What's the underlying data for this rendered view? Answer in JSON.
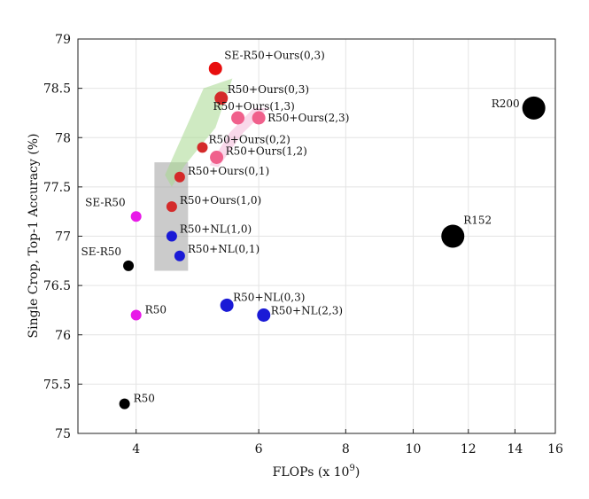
{
  "chart_data": {
    "type": "scatter",
    "title": "",
    "xlabel": "FLOPs (x 10",
    "xlabel_sup": "9",
    "xlabel_end": ")",
    "ylabel": "Single Crop, Top-1 Accuracy (%)",
    "xscale": "log",
    "xlim": [
      3.3,
      16
    ],
    "ylim": [
      75,
      79
    ],
    "xticks": [
      4,
      6,
      8,
      10,
      12,
      14,
      16
    ],
    "xtick_labels": [
      "4",
      "6",
      "8",
      "10",
      "12",
      "14",
      "16"
    ],
    "yticks": [
      75,
      75.5,
      76,
      76.5,
      77,
      77.5,
      78,
      78.5,
      79
    ],
    "ytick_labels": [
      "75",
      "75.5",
      "76",
      "76.5",
      "77",
      "77.5",
      "78",
      "78.5",
      "79"
    ],
    "grid": true,
    "points": [
      {
        "label": "R50",
        "x": 3.85,
        "y": 75.3,
        "color": "#000000",
        "size": "small"
      },
      {
        "label": "SE-R50",
        "x": 3.9,
        "y": 76.7,
        "color": "#000000",
        "size": "small"
      },
      {
        "label": "R50",
        "x": 4.0,
        "y": 76.2,
        "color": "#e81ae8",
        "size": "small"
      },
      {
        "label": "SE-R50",
        "x": 4.0,
        "y": 77.2,
        "color": "#e81ae8",
        "size": "small"
      },
      {
        "label": "R50+NL(1,0)",
        "x": 4.5,
        "y": 77.0,
        "color": "#1a1ad6",
        "size": "small"
      },
      {
        "label": "R50+NL(0,1)",
        "x": 4.62,
        "y": 76.8,
        "color": "#1a1ad6",
        "size": "small"
      },
      {
        "label": "R50+NL(0,3)",
        "x": 5.4,
        "y": 76.3,
        "color": "#1a1ad6",
        "size": "medium"
      },
      {
        "label": "R50+NL(2,3)",
        "x": 6.1,
        "y": 76.2,
        "color": "#1a1ad6",
        "size": "medium"
      },
      {
        "label": "R50+Ours(1,0)",
        "x": 4.5,
        "y": 77.3,
        "color": "#d42a2a",
        "size": "small"
      },
      {
        "label": "R50+Ours(0,1)",
        "x": 4.62,
        "y": 77.6,
        "color": "#d42a2a",
        "size": "small"
      },
      {
        "label": "R50+Ours(0,2)",
        "x": 4.98,
        "y": 77.9,
        "color": "#d42a2a",
        "size": "small"
      },
      {
        "label": "R50+Ours(1,2)",
        "x": 5.22,
        "y": 77.8,
        "color": "#f0608c",
        "size": "medium"
      },
      {
        "label": "R50+Ours(0,3)",
        "x": 5.3,
        "y": 78.4,
        "color": "#d42a2a",
        "size": "medium"
      },
      {
        "label": "R50+Ours(1,3)",
        "x": 5.6,
        "y": 78.2,
        "color": "#f0608c",
        "size": "medium"
      },
      {
        "label": "R50+Ours(2,3)",
        "x": 6.0,
        "y": 78.2,
        "color": "#f0608c",
        "size": "medium"
      },
      {
        "label": "SE-R50+Ours(0,3)",
        "x": 5.2,
        "y": 78.7,
        "color": "#e80e0e",
        "size": "medium"
      },
      {
        "label": "R152",
        "x": 11.4,
        "y": 77.0,
        "color": "#000000",
        "size": "large"
      },
      {
        "label": "R200",
        "x": 14.9,
        "y": 78.3,
        "color": "#000000",
        "size": "large"
      }
    ],
    "highlight_regions": [
      {
        "name": "gray",
        "color": "#a0a0a0"
      },
      {
        "name": "green",
        "color": "#a8d890"
      },
      {
        "name": "pink",
        "color": "#f4b8d8"
      }
    ]
  }
}
